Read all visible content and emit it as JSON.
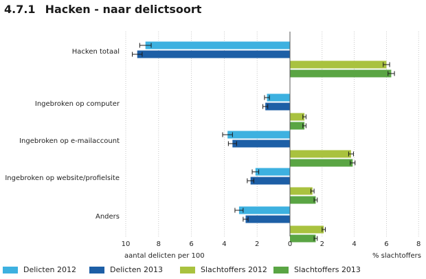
{
  "header": {
    "number": "4.7.1",
    "title": "Hacken - naar delictsoort"
  },
  "chart_data": {
    "type": "bar",
    "orientation": "horizontal-butterfly",
    "title": "Hacken - naar delictsoort",
    "categories": [
      "Hacken totaal",
      "Ingebroken op computer",
      "Ingebroken op e-mailaccount",
      "Ingebroken op website/profielsite",
      "Anders"
    ],
    "left_axis": {
      "label": "aantal delicten per 100",
      "range": [
        10,
        0
      ],
      "ticks": [
        "10",
        "8",
        "6",
        "4",
        "2",
        "0"
      ]
    },
    "right_axis": {
      "label": "% slachtoffers",
      "range": [
        0,
        8
      ],
      "ticks": [
        "0",
        "2",
        "4",
        "6",
        "8"
      ]
    },
    "series": [
      {
        "name": "Delicten 2012",
        "side": "left",
        "color": "#3db1e0",
        "values": [
          8.8,
          1.4,
          3.8,
          2.1,
          3.1
        ],
        "err": [
          0.35,
          0.15,
          0.3,
          0.2,
          0.25
        ]
      },
      {
        "name": "Delicten 2013",
        "side": "left",
        "color": "#1d5fa6",
        "values": [
          9.3,
          1.5,
          3.5,
          2.4,
          2.7
        ],
        "err": [
          0.3,
          0.15,
          0.25,
          0.2,
          0.15
        ]
      },
      {
        "name": "Slachtoffers 2012",
        "side": "right",
        "color": "#a9c23f",
        "values": [
          6.0,
          0.9,
          3.8,
          1.4,
          2.1
        ],
        "err": [
          0.2,
          0.1,
          0.15,
          0.1,
          0.1
        ]
      },
      {
        "name": "Slachtoffers 2013",
        "side": "right",
        "color": "#5aa544",
        "values": [
          6.3,
          0.9,
          3.9,
          1.6,
          1.6
        ],
        "err": [
          0.2,
          0.1,
          0.15,
          0.1,
          0.1
        ]
      }
    ]
  },
  "legend": [
    {
      "label": "Delicten 2012",
      "color": "#3db1e0"
    },
    {
      "label": "Delicten 2013",
      "color": "#1d5fa6"
    },
    {
      "label": "Slachtoffers 2012",
      "color": "#a9c23f"
    },
    {
      "label": "Slachtoffers 2013",
      "color": "#5aa544"
    }
  ]
}
